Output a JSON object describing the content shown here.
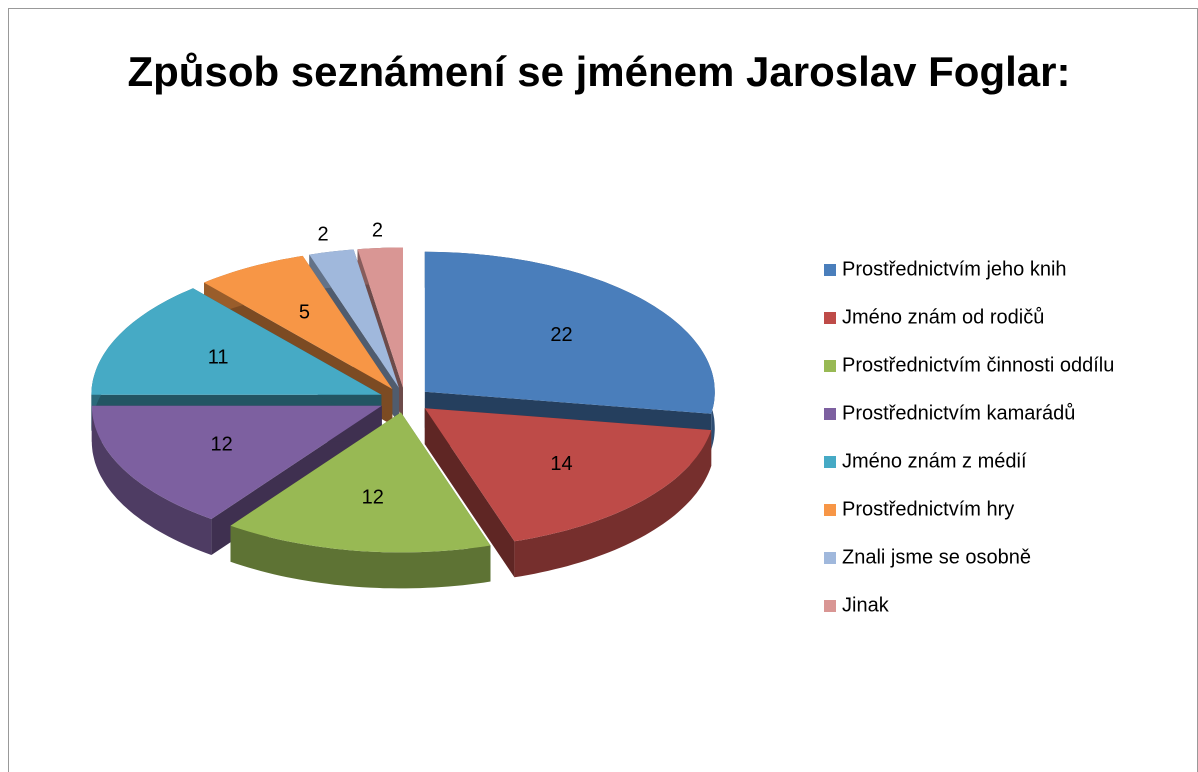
{
  "chart_data": {
    "type": "pie",
    "title": "Způsob seznámení se jménem Jaroslav Foglar:",
    "categories": [
      "Prostřednictvím jeho knih",
      "Jméno znám od rodičů",
      "Prostřednictvím činnosti oddílu",
      "Prostřednictvím kamarádů",
      "Jméno znám z médií",
      "Prostřednictvím hry",
      "Znali jsme se osobně",
      "Jinak"
    ],
    "values": [
      22,
      14,
      12,
      12,
      11,
      5,
      2,
      2
    ],
    "colors": [
      "#4a7ebb",
      "#be4b48",
      "#98b954",
      "#7d60a0",
      "#46aac5",
      "#f79646",
      "#a0b8dc",
      "#d99694"
    ],
    "legend": "right"
  }
}
